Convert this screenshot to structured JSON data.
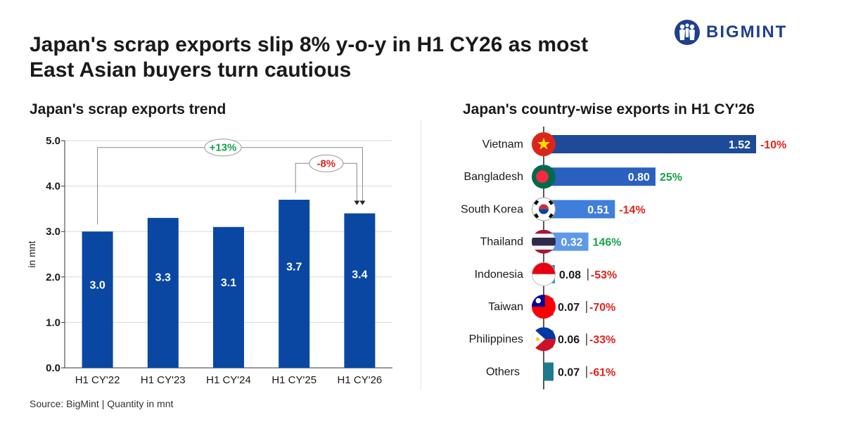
{
  "title": "Japan's scrap exports slip 8% y-o-y in H1 CY26 as most East Asian buyers turn cautious",
  "brand": "BIGMINT",
  "source": "Source: BigMint | Quantity in mnt",
  "colors": {
    "bar": "#0a47a3",
    "positive": "#17a24a",
    "negative": "#e0241b",
    "others_bar": "#1b7c8e"
  },
  "chart_data": [
    {
      "type": "bar",
      "title": "Japan's scrap exports trend",
      "xlabel": "",
      "ylabel": "in mnt",
      "categories": [
        "H1 CY'22",
        "H1 CY'23",
        "H1 CY'24",
        "H1 CY'25",
        "H1 CY'26"
      ],
      "values": [
        3.0,
        3.3,
        3.1,
        3.7,
        3.4
      ],
      "tick_labels": [
        "0.0",
        "1.0",
        "2.0",
        "3.0",
        "4.0",
        "5.0"
      ],
      "ylim": [
        0,
        5
      ],
      "grid": true,
      "annotations": [
        {
          "label": "+13%",
          "from": "H1 CY'22",
          "to": "H1 CY'26",
          "sentiment": "positive"
        },
        {
          "label": "-8%",
          "from": "H1 CY'25",
          "to": "H1 CY'26",
          "sentiment": "negative"
        }
      ]
    },
    {
      "type": "bar",
      "orientation": "horizontal",
      "title": "Japan's country-wise exports in H1 CY'26",
      "categories": [
        "Vietnam",
        "Bangladesh",
        "South Korea",
        "Thailand",
        "Indonesia",
        "Taiwan",
        "Philippines",
        "Others"
      ],
      "values": [
        1.52,
        0.8,
        0.51,
        0.32,
        0.08,
        0.07,
        0.06,
        0.07
      ],
      "value_labels": [
        "1.52",
        "0.80",
        "0.51",
        "0.32",
        "0.08",
        "0.07",
        "0.06",
        "0.07"
      ],
      "change_labels": [
        "-10%",
        "25%",
        "-14%",
        "146%",
        "-53%",
        "-70%",
        "-33%",
        "-61%"
      ],
      "flags": [
        "vietnam-flag",
        "bangladesh-flag",
        "south-korea-flag",
        "thailand-flag",
        "indonesia-flag",
        "taiwan-flag",
        "philippines-flag",
        ""
      ],
      "bar_colors": [
        "#1e4a9a",
        "#2a60c0",
        "#3f7edb",
        "#5f98e8",
        "#1b8fd0",
        "#6fb0e6",
        "#89c0ec",
        "#1b7c8e"
      ]
    }
  ]
}
